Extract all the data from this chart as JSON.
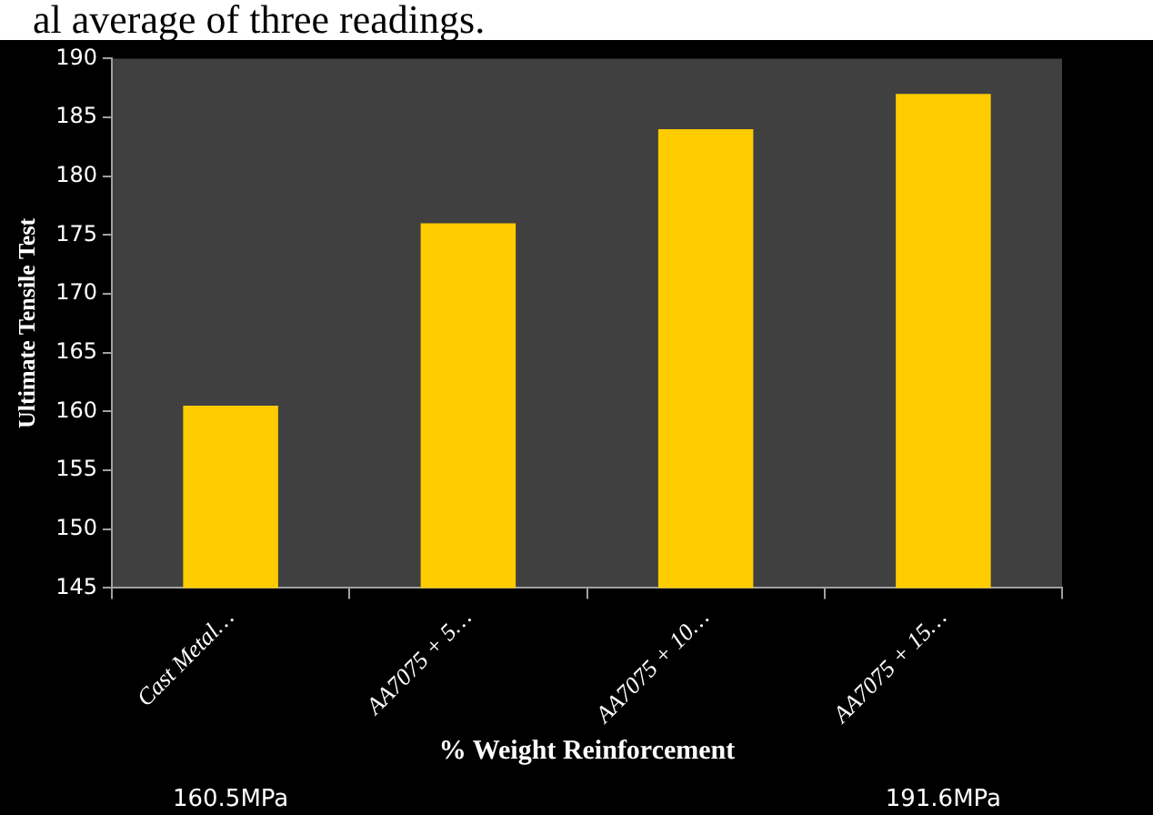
{
  "chart_data": {
    "type": "bar",
    "xlabel": "% Weight Reinforcement",
    "ylabel": "Ultimate Tensile Test",
    "categories": [
      "Cast Metal…",
      "AA7075 + 5…",
      "AA7075 + 10…",
      "AA7075 + 15…"
    ],
    "values": [
      160.5,
      176,
      184,
      187
    ],
    "color": "#ffcc00",
    "ylim": [
      145,
      190
    ],
    "yticks": [
      145,
      150,
      155,
      160,
      165,
      170,
      175,
      180,
      185,
      190
    ],
    "grid": false,
    "annotations": [
      "al average of three readings.",
      "160.5MPa",
      "191.6MPa"
    ]
  }
}
